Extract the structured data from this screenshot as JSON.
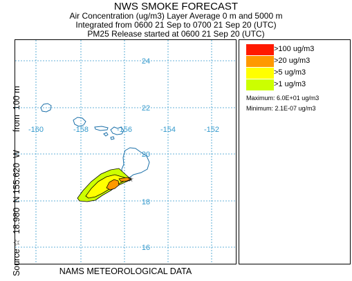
{
  "header": {
    "title": "NWS SMOKE FORECAST",
    "line2": "Air Concentration (ug/m3) Layer Average    0 m and  5000 m",
    "line3": "Integrated from 0600 21 Sep to 0700 21 Sep 20 (UTC)",
    "line4": "PM25 Release started at 0600 21 Sep 20 (UTC)"
  },
  "side_label": {
    "source": "Source ☆  18.980  N 155.620  W",
    "from": "from  100 m"
  },
  "footer": "NAMS METEOROLOGICAL DATA",
  "map": {
    "lat_labels": [
      "24",
      "22",
      "20",
      "18",
      "16"
    ],
    "lon_labels": [
      "-160",
      "-158",
      "-156",
      "-154",
      "-152"
    ],
    "source_marker": "☆"
  },
  "legend": {
    "items": [
      {
        "label": ">100 ug/m3",
        "color": "#ff1a00"
      },
      {
        "label": ">20 ug/m3",
        "color": "#ff9900"
      },
      {
        "label": ">5 ug/m3",
        "color": "#ffff00"
      },
      {
        "label": ">1 ug/m3",
        "color": "#ccff00"
      }
    ],
    "maximum": "Maximum: 6.0E+01 ug/m3",
    "minimum": "Minimum: 2.1E-07 ug/m3"
  },
  "colors": {
    "grid": "#3399cc",
    "coast": "#1a6fa8",
    "label": "#3399cc"
  }
}
